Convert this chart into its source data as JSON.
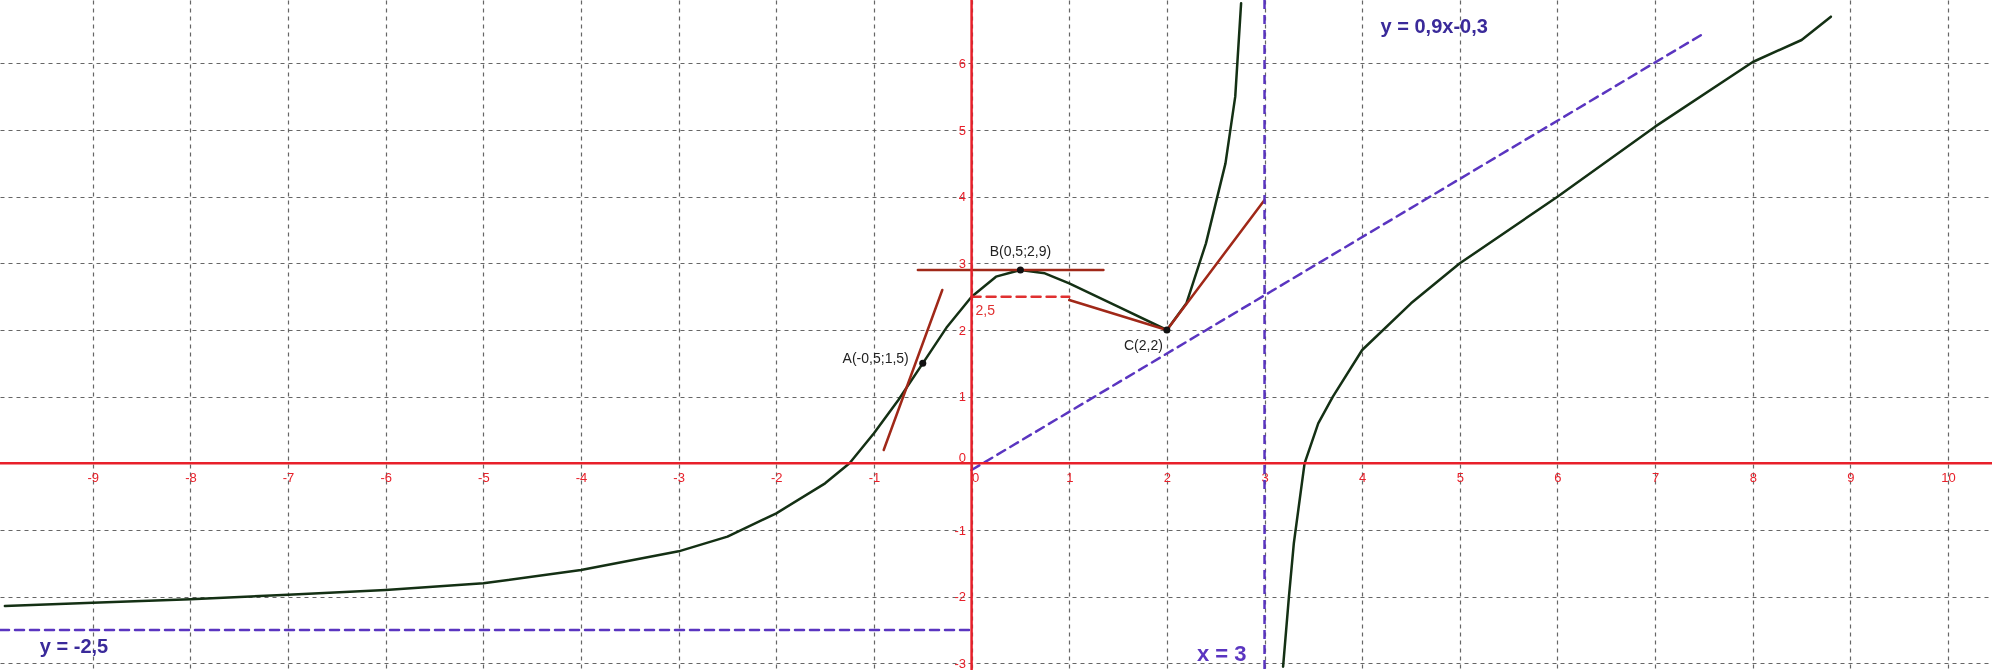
{
  "chart_data": {
    "type": "line",
    "xlim": [
      -9.95,
      10.45
    ],
    "ylim": [
      -3.1,
      6.95
    ],
    "xticks": [
      -9,
      -8,
      -7,
      -6,
      -5,
      -4,
      -3,
      -2,
      -1,
      0,
      1,
      2,
      3,
      4,
      5,
      6,
      7,
      8,
      9,
      10
    ],
    "yticks": [
      -3,
      -2,
      -1,
      0,
      1,
      2,
      3,
      4,
      5,
      6
    ],
    "grid": true,
    "series": [
      {
        "color": "#143014",
        "x": [
          -9.9,
          -9,
          -8,
          -7,
          -6,
          -5,
          -4,
          -3,
          -2.5,
          -2,
          -1.5,
          -1.25,
          -1,
          -0.75,
          -0.5,
          -0.25,
          0,
          0.25,
          0.5,
          0.75,
          1,
          1.5,
          2,
          2.2,
          2.4,
          2.5,
          2.6,
          2.7,
          2.76
        ],
        "values": [
          -2.14,
          -2.09,
          -2.04,
          -1.97,
          -1.9,
          -1.8,
          -1.6,
          -1.32,
          -1.1,
          -0.75,
          -0.3,
          0,
          0.45,
          0.95,
          1.5,
          2.05,
          2.5,
          2.8,
          2.9,
          2.85,
          2.7,
          2.35,
          2,
          2.4,
          3.3,
          3.9,
          4.5,
          5.5,
          6.9
        ]
      },
      {
        "color": "#143014",
        "x": [
          3.19,
          3.25,
          3.3,
          3.41,
          3.55,
          3.7,
          4,
          4.5,
          5,
          6,
          7,
          8,
          8.5,
          8.8
        ],
        "values": [
          -3.05,
          -2,
          -1.2,
          0,
          0.6,
          1,
          1.7,
          2.4,
          3,
          4,
          5.05,
          6.02,
          6.35,
          6.7
        ]
      },
      {
        "color": "#5a35c0",
        "line_style": "dashed",
        "x": [
          -9.95,
          0
        ],
        "values": [
          -2.5,
          -2.5
        ]
      },
      {
        "color": "#5a35c0",
        "line_style": "dashed",
        "x": [
          0,
          7.5
        ],
        "values": [
          -0.1,
          6.45
        ]
      },
      {
        "color": "#a02818",
        "x": [
          -0.9,
          -0.3
        ],
        "values": [
          0.2,
          2.6
        ]
      },
      {
        "color": "#a02818",
        "x": [
          -0.55,
          1.35
        ],
        "values": [
          2.9,
          2.9
        ]
      },
      {
        "color": "#a02818",
        "x": [
          1,
          2,
          3
        ],
        "values": [
          2.45,
          2,
          3.95
        ]
      },
      {
        "color": "#e03030",
        "line_style": "dashed",
        "x": [
          0,
          1
        ],
        "values": [
          2.5,
          2.5
        ]
      },
      {
        "type": "scatter",
        "color": "#111111",
        "marker": "circle",
        "x": [
          -0.5,
          0.5,
          2
        ],
        "values": [
          1.5,
          2.9,
          2
        ]
      }
    ],
    "ref_lines": [
      {
        "axis": "x",
        "value": 3,
        "label": "x = 3",
        "color": "#5a35c0",
        "line_style": "dashed"
      },
      {
        "axis": "x",
        "value": 0,
        "color": "#e8202a"
      },
      {
        "axis": "y",
        "value": 0,
        "color": "#e8202a"
      }
    ],
    "annotations": [
      {
        "text": "A(-0,5;1,5)",
        "x": -0.5,
        "y": 1.5
      },
      {
        "text": "B(0,5;2,9)",
        "x": 0.5,
        "y": 2.9
      },
      {
        "text": "C(2,2)",
        "x": 2,
        "y": 2
      },
      {
        "text": "2,5",
        "x": 0,
        "y": 2.5
      },
      "y = 0,9x-0,3",
      "y = -2,5"
    ]
  }
}
